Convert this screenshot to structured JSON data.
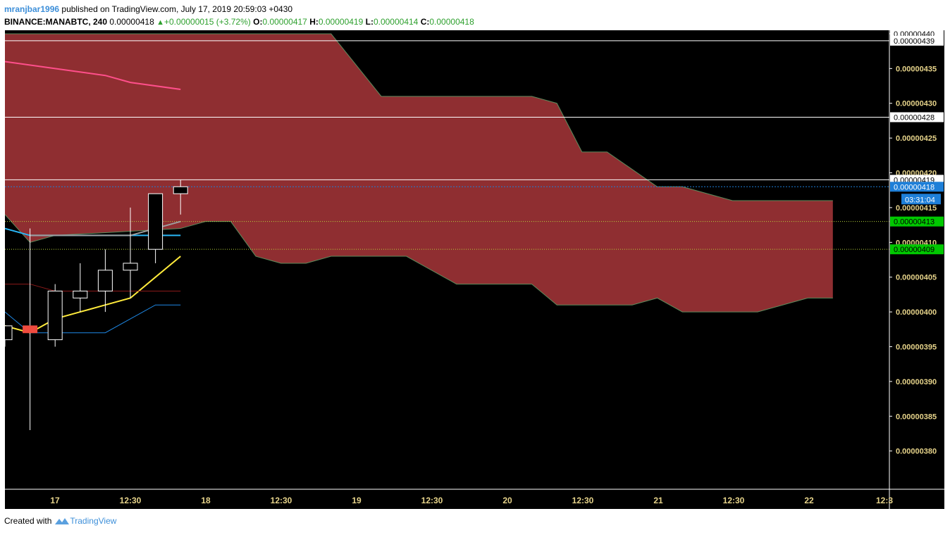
{
  "header": {
    "author": "mranjbar1996",
    "published": "published on TradingView.com, July 17, 2019 20:59:03 +0430",
    "symbol": "BINANCE:MANABTC, 240",
    "last": "0.00000418",
    "change": "+0.00000015 (+3.72%)",
    "o_label": "O:",
    "o_value": "0.00000417",
    "h_label": "H:",
    "h_value": "0.00000419",
    "l_label": "L:",
    "l_value": "0.00000414",
    "c_label": "C:",
    "c_value": "0.00000418"
  },
  "footer": {
    "created_with": "Created with",
    "brand": "TradingView"
  },
  "colors": {
    "background": "#000000",
    "cloud": "#8f2e31",
    "cloud_edge": "#5c8a5c",
    "candle": "#ffffff",
    "red_candle": "#ef4b3f",
    "axis_text": "#e6d38a",
    "ema_yellow": "#ffeb3b",
    "cyan": "#29b6f6",
    "pink": "#ff4f8b",
    "gray": "#9e9e9e",
    "blue": "#1e88e5",
    "darkred": "#8b1a1a",
    "price_tag_blue": "#1e7fd8",
    "price_tag_green": "#00c800"
  },
  "chart_data": {
    "type": "candlestick",
    "x_labels": [
      "17",
      "12:30",
      "18",
      "12:30",
      "19",
      "12:30",
      "20",
      "12:30",
      "21",
      "12:30",
      "22",
      "12:3"
    ],
    "y_ticks": [
      "0.00000440",
      "0.00000435",
      "0.00000430",
      "0.00000425",
      "0.00000420",
      "0.00000415",
      "0.00000410",
      "0.00000405",
      "0.00000400",
      "0.00000395",
      "0.00000390",
      "0.00000385",
      "0.00000380"
    ],
    "y_tick_values": [
      4.4,
      4.35,
      4.3,
      4.25,
      4.2,
      4.15,
      4.1,
      4.05,
      4.0,
      3.95,
      3.9,
      3.85,
      3.8
    ],
    "ylim": [
      3.745,
      4.405
    ],
    "y_scale_note": "values in units of 1e-6 BTC",
    "candles": [
      {
        "x": 0,
        "o": 3.96,
        "h": 3.98,
        "l": 3.95,
        "c": 3.98
      },
      {
        "x": 1,
        "o": 3.98,
        "h": 4.12,
        "l": 3.83,
        "c": 3.97
      },
      {
        "x": 2,
        "o": 3.96,
        "h": 4.04,
        "l": 3.95,
        "c": 4.03
      },
      {
        "x": 3,
        "o": 4.02,
        "h": 4.07,
        "l": 4.0,
        "c": 4.03
      },
      {
        "x": 4,
        "o": 4.03,
        "h": 4.09,
        "l": 4.0,
        "c": 4.06
      },
      {
        "x": 5,
        "o": 4.06,
        "h": 4.15,
        "l": 4.02,
        "c": 4.07
      },
      {
        "x": 6,
        "o": 4.09,
        "h": 4.17,
        "l": 4.07,
        "c": 4.17
      },
      {
        "x": 7,
        "o": 4.17,
        "h": 4.19,
        "l": 4.14,
        "c": 4.18
      }
    ],
    "red_candle_index": 1,
    "cloud_upper": [
      [
        0,
        4.4
      ],
      [
        13,
        4.4
      ],
      [
        15,
        4.31
      ],
      [
        21,
        4.31
      ],
      [
        22,
        4.3
      ],
      [
        23,
        4.23
      ],
      [
        24,
        4.23
      ],
      [
        26,
        4.18
      ],
      [
        27,
        4.18
      ],
      [
        29,
        4.16
      ],
      [
        33,
        4.16
      ]
    ],
    "cloud_lower": [
      [
        0,
        4.14
      ],
      [
        1,
        4.1
      ],
      [
        2,
        4.11
      ],
      [
        7,
        4.12
      ],
      [
        8,
        4.13
      ],
      [
        9,
        4.13
      ],
      [
        10,
        4.08
      ],
      [
        11,
        4.07
      ],
      [
        12,
        4.07
      ],
      [
        13,
        4.08
      ],
      [
        16,
        4.08
      ],
      [
        17,
        4.06
      ],
      [
        18,
        4.04
      ],
      [
        21,
        4.04
      ],
      [
        22,
        4.01
      ],
      [
        25,
        4.01
      ],
      [
        26,
        4.02
      ],
      [
        27,
        4.0
      ],
      [
        28,
        4.0
      ],
      [
        30,
        4.0
      ],
      [
        32,
        4.02
      ],
      [
        33,
        4.02
      ]
    ],
    "lines": {
      "pink": [
        [
          0,
          4.36
        ],
        [
          2,
          4.35
        ],
        [
          4,
          4.34
        ],
        [
          5,
          4.33
        ],
        [
          7,
          4.32
        ]
      ],
      "yellow": [
        [
          0,
          3.98
        ],
        [
          1,
          3.97
        ],
        [
          2,
          3.99
        ],
        [
          3,
          4.0
        ],
        [
          4,
          4.01
        ],
        [
          5,
          4.02
        ],
        [
          6,
          4.05
        ],
        [
          7,
          4.08
        ]
      ],
      "cyan": [
        [
          0,
          4.12
        ],
        [
          1,
          4.11
        ],
        [
          2,
          4.11
        ],
        [
          5,
          4.11
        ],
        [
          6,
          4.11
        ],
        [
          7,
          4.11
        ]
      ],
      "gray": [
        [
          1,
          4.11
        ],
        [
          3,
          4.11
        ],
        [
          5,
          4.11
        ],
        [
          6,
          4.12
        ],
        [
          7,
          4.13
        ]
      ],
      "blue": [
        [
          0,
          4.0
        ],
        [
          1,
          3.97
        ],
        [
          4,
          3.97
        ],
        [
          5,
          3.99
        ],
        [
          6,
          4.01
        ],
        [
          7,
          4.01
        ]
      ],
      "darkred": [
        [
          0,
          4.04
        ],
        [
          1,
          4.04
        ],
        [
          2,
          4.03
        ],
        [
          7,
          4.03
        ]
      ]
    },
    "horizontal_lines": [
      {
        "value": 4.39,
        "label": "0.00000439",
        "style": "white"
      },
      {
        "value": 4.28,
        "label": "0.00000428",
        "style": "white"
      },
      {
        "value": 4.19,
        "label": "0.00000419",
        "style": "white"
      },
      {
        "value": 4.18,
        "label": "0.00000418",
        "style": "blue-dotted"
      },
      {
        "value": 4.13,
        "label": "0.00000413",
        "style": "green-dotted"
      },
      {
        "value": 4.09,
        "label": "0.00000409",
        "style": "green-dotted"
      }
    ],
    "countdown": "03:31:04",
    "top_tag": "0.00000440"
  }
}
